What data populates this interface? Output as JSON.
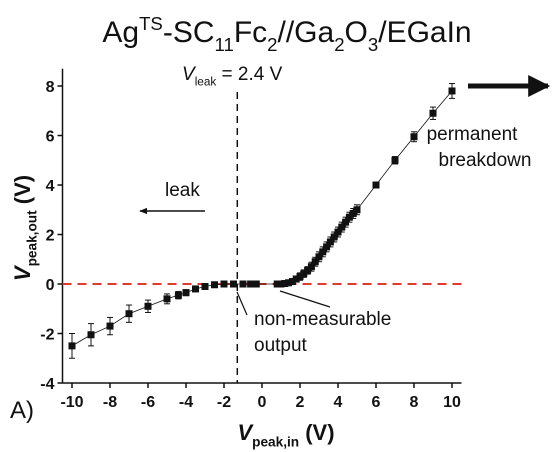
{
  "chart_data": {
    "type": "line",
    "title": [
      {
        "text": "Ag"
      },
      {
        "text": "TS",
        "sup": true
      },
      {
        "text": "-SC"
      },
      {
        "text": "11",
        "sub": true
      },
      {
        "text": "Fc"
      },
      {
        "text": "2",
        "sub": true
      },
      {
        "text": "//Ga"
      },
      {
        "text": "2",
        "sub": true
      },
      {
        "text": "O"
      },
      {
        "text": "3",
        "sub": true
      },
      {
        "text": "/EGaIn"
      }
    ],
    "xlabel": [
      {
        "text": "V",
        "italic": true
      },
      {
        "text": "peak,in",
        "sub": true
      },
      {
        "text": " (V)"
      }
    ],
    "ylabel": [
      {
        "text": "V",
        "italic": true
      },
      {
        "text": "peak,out",
        "sub": true
      },
      {
        "text": " (V)"
      }
    ],
    "panel_label": "A)",
    "annotations": {
      "leak_value": [
        {
          "text": "V",
          "italic": true
        },
        {
          "text": "leak",
          "sub": true
        },
        {
          "text": " = 2.4 V"
        }
      ],
      "leak": "leak",
      "breakdown": [
        "permanent",
        "breakdown"
      ],
      "non_measurable": [
        "non-measurable",
        "output"
      ]
    },
    "xlim": [
      -10.5,
      10.5
    ],
    "ylim": [
      -4,
      8.7
    ],
    "xticks": [
      -10,
      -8,
      -6,
      -4,
      -2,
      0,
      2,
      4,
      6,
      8,
      10
    ],
    "yticks": [
      -4,
      -2,
      0,
      2,
      4,
      6,
      8
    ],
    "hlines": [
      {
        "y": 0,
        "color": "#e03a2f"
      }
    ],
    "vlines": [
      {
        "x": -1.3,
        "color": "#111111"
      }
    ],
    "series": [
      {
        "color": "#111111",
        "x": [
          -10,
          -9,
          -8,
          -7,
          -6,
          -5,
          -4.4,
          -4,
          -3.5,
          -3,
          -2.5,
          -2,
          -1.5,
          -1,
          -0.6,
          -0.3,
          0.8,
          1.0,
          1.2,
          1.4,
          1.6,
          1.8,
          2.0,
          2.2,
          2.4,
          2.6,
          2.8,
          3.0,
          3.2,
          3.4,
          3.6,
          3.8,
          4.0,
          4.2,
          4.4,
          4.6,
          4.8,
          5.0,
          6,
          7,
          8,
          9,
          10
        ],
        "values": [
          -2.5,
          -2.05,
          -1.7,
          -1.2,
          -0.9,
          -0.6,
          -0.45,
          -0.35,
          -0.2,
          -0.1,
          -0.03,
          0,
          0,
          0,
          0,
          0,
          0,
          0,
          0.02,
          0.05,
          0.1,
          0.2,
          0.3,
          0.42,
          0.55,
          0.7,
          0.9,
          1.1,
          1.3,
          1.5,
          1.7,
          1.9,
          2.1,
          2.3,
          2.5,
          2.7,
          2.85,
          3.0,
          4.0,
          5.0,
          5.95,
          6.9,
          7.8
        ],
        "errors": [
          0.5,
          0.45,
          0.35,
          0.35,
          0.25,
          0.2,
          0.15,
          0.12,
          0.1,
          0.08,
          0.06,
          0.05,
          0.05,
          0.05,
          0.05,
          0.05,
          0.05,
          0.05,
          0.05,
          0.08,
          0.1,
          0.12,
          0.15,
          0.15,
          0.15,
          0.18,
          0.18,
          0.2,
          0.2,
          0.2,
          0.2,
          0.2,
          0.2,
          0.2,
          0.2,
          0.2,
          0.2,
          0.2,
          0.1,
          0.15,
          0.2,
          0.25,
          0.3
        ]
      }
    ]
  }
}
